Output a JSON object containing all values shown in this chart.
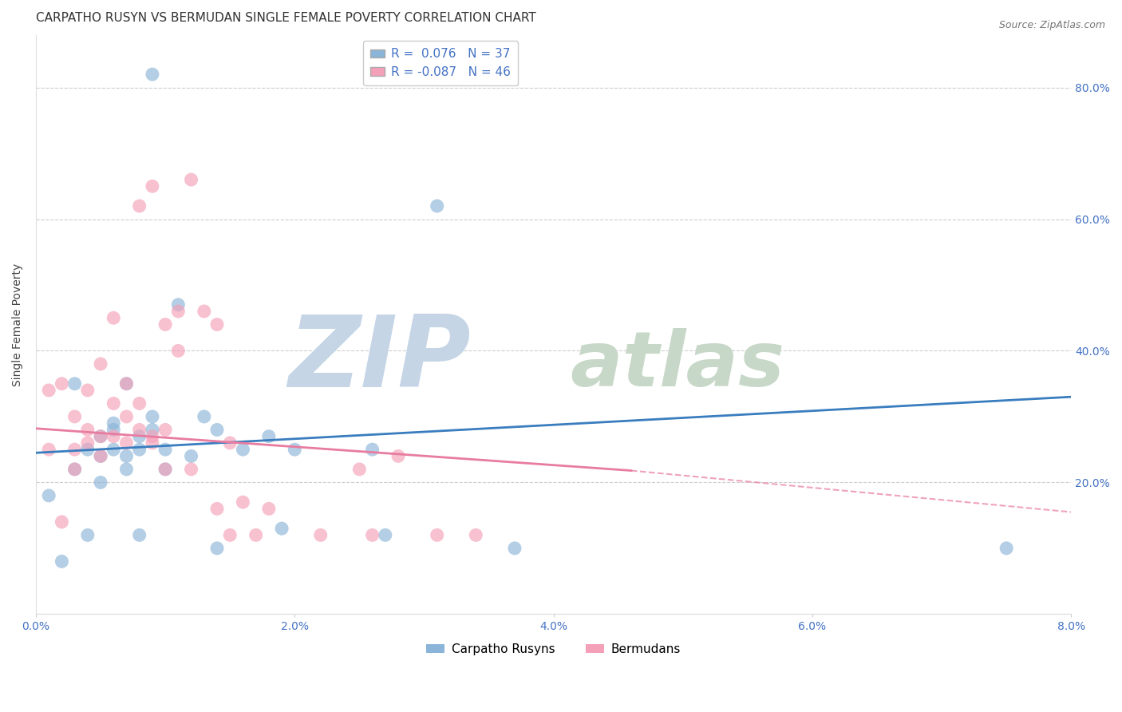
{
  "title": "CARPATHO RUSYN VS BERMUDAN SINGLE FEMALE POVERTY CORRELATION CHART",
  "source": "Source: ZipAtlas.com",
  "ylabel": "Single Female Poverty",
  "xlim": [
    0.0,
    0.08
  ],
  "ylim": [
    0.0,
    0.88
  ],
  "yticks": [
    0.0,
    0.2,
    0.4,
    0.6,
    0.8
  ],
  "ytick_labels": [
    "",
    "20.0%",
    "40.0%",
    "60.0%",
    "80.0%"
  ],
  "xtick_labels": [
    "0.0%",
    "2.0%",
    "4.0%",
    "6.0%",
    "8.0%"
  ],
  "xtick_positions": [
    0.0,
    0.02,
    0.04,
    0.06,
    0.08
  ],
  "color_blue": "#8ab4d8",
  "color_pink": "#f4a0b8",
  "color_blue_line": "#3a7dbf",
  "color_pink_line": "#e87ca0",
  "color_tick": "#4472c4",
  "legend_label1": "Carpatho Rusyns",
  "legend_label2": "Bermudans",
  "blue_points_x": [
    0.009,
    0.001,
    0.002,
    0.003,
    0.003,
    0.004,
    0.004,
    0.005,
    0.005,
    0.005,
    0.006,
    0.006,
    0.006,
    0.007,
    0.007,
    0.007,
    0.008,
    0.008,
    0.008,
    0.009,
    0.009,
    0.01,
    0.01,
    0.011,
    0.012,
    0.013,
    0.014,
    0.014,
    0.016,
    0.018,
    0.019,
    0.02,
    0.026,
    0.027,
    0.031,
    0.037,
    0.075
  ],
  "blue_points_y": [
    0.82,
    0.18,
    0.08,
    0.22,
    0.35,
    0.25,
    0.12,
    0.27,
    0.2,
    0.24,
    0.25,
    0.28,
    0.29,
    0.22,
    0.35,
    0.24,
    0.25,
    0.27,
    0.12,
    0.28,
    0.3,
    0.22,
    0.25,
    0.47,
    0.24,
    0.3,
    0.28,
    0.1,
    0.25,
    0.27,
    0.13,
    0.25,
    0.25,
    0.12,
    0.62,
    0.1,
    0.1
  ],
  "pink_points_x": [
    0.001,
    0.001,
    0.002,
    0.002,
    0.003,
    0.003,
    0.003,
    0.004,
    0.004,
    0.004,
    0.005,
    0.005,
    0.005,
    0.006,
    0.006,
    0.006,
    0.007,
    0.007,
    0.007,
    0.008,
    0.008,
    0.008,
    0.009,
    0.009,
    0.009,
    0.01,
    0.01,
    0.01,
    0.011,
    0.011,
    0.012,
    0.012,
    0.013,
    0.014,
    0.014,
    0.015,
    0.015,
    0.016,
    0.017,
    0.018,
    0.022,
    0.025,
    0.026,
    0.028,
    0.031,
    0.034
  ],
  "pink_points_y": [
    0.25,
    0.34,
    0.14,
    0.35,
    0.25,
    0.3,
    0.22,
    0.34,
    0.28,
    0.26,
    0.27,
    0.24,
    0.38,
    0.27,
    0.32,
    0.45,
    0.3,
    0.26,
    0.35,
    0.32,
    0.28,
    0.62,
    0.27,
    0.26,
    0.65,
    0.28,
    0.44,
    0.22,
    0.46,
    0.4,
    0.22,
    0.66,
    0.46,
    0.16,
    0.44,
    0.12,
    0.26,
    0.17,
    0.12,
    0.16,
    0.12,
    0.22,
    0.12,
    0.24,
    0.12,
    0.12
  ],
  "blue_trend": [
    0.0,
    0.08,
    0.245,
    0.33
  ],
  "pink_trend_solid": [
    0.0,
    0.046,
    0.282,
    0.218
  ],
  "pink_trend_dash": [
    0.046,
    0.08,
    0.218,
    0.155
  ],
  "background_color": "#ffffff",
  "grid_color": "#c8c8c8",
  "watermark_zip": "ZIP",
  "watermark_atlas": "atlas",
  "watermark_color_zip": "#c5d5e5",
  "watermark_color_atlas": "#c8d8c8",
  "title_fontsize": 11,
  "axis_label_fontsize": 10,
  "tick_fontsize": 10,
  "source_fontsize": 9
}
